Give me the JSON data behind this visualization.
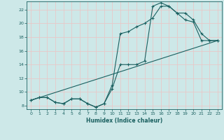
{
  "xlabel": "Humidex (Indice chaleur)",
  "bg_color": "#cde8e8",
  "grid_color": "#e8c8c8",
  "line_color": "#1a6060",
  "xlim": [
    -0.5,
    23.5
  ],
  "ylim": [
    7.5,
    23.2
  ],
  "yticks": [
    8,
    10,
    12,
    14,
    16,
    18,
    20,
    22
  ],
  "xticks": [
    0,
    1,
    2,
    3,
    4,
    5,
    6,
    7,
    8,
    9,
    10,
    11,
    12,
    13,
    14,
    15,
    16,
    17,
    18,
    19,
    20,
    21,
    22,
    23
  ],
  "line1_x": [
    0,
    1,
    2,
    3,
    4,
    5,
    6,
    7,
    8,
    9,
    10,
    11,
    12,
    13,
    14,
    15,
    16,
    17,
    18,
    19,
    20,
    21,
    22,
    23
  ],
  "line1_y": [
    8.8,
    9.2,
    9.2,
    8.5,
    8.3,
    9.0,
    9.0,
    8.3,
    7.8,
    8.3,
    10.5,
    14.0,
    14.0,
    14.0,
    14.5,
    22.5,
    23.0,
    22.5,
    21.5,
    20.5,
    20.2,
    17.5,
    17.5,
    17.5
  ],
  "line2_x": [
    0,
    1,
    2,
    3,
    4,
    5,
    6,
    7,
    8,
    9,
    10,
    11,
    12,
    13,
    14,
    15,
    16,
    17,
    18,
    19,
    20,
    21,
    22,
    23
  ],
  "line2_y": [
    8.8,
    9.2,
    9.2,
    8.5,
    8.3,
    9.0,
    9.0,
    8.3,
    7.8,
    8.3,
    11.0,
    18.5,
    18.8,
    19.5,
    20.0,
    20.8,
    22.5,
    22.5,
    21.5,
    21.5,
    20.5,
    18.5,
    17.5,
    17.5
  ],
  "line3_x": [
    0,
    23
  ],
  "line3_y": [
    8.8,
    17.5
  ]
}
